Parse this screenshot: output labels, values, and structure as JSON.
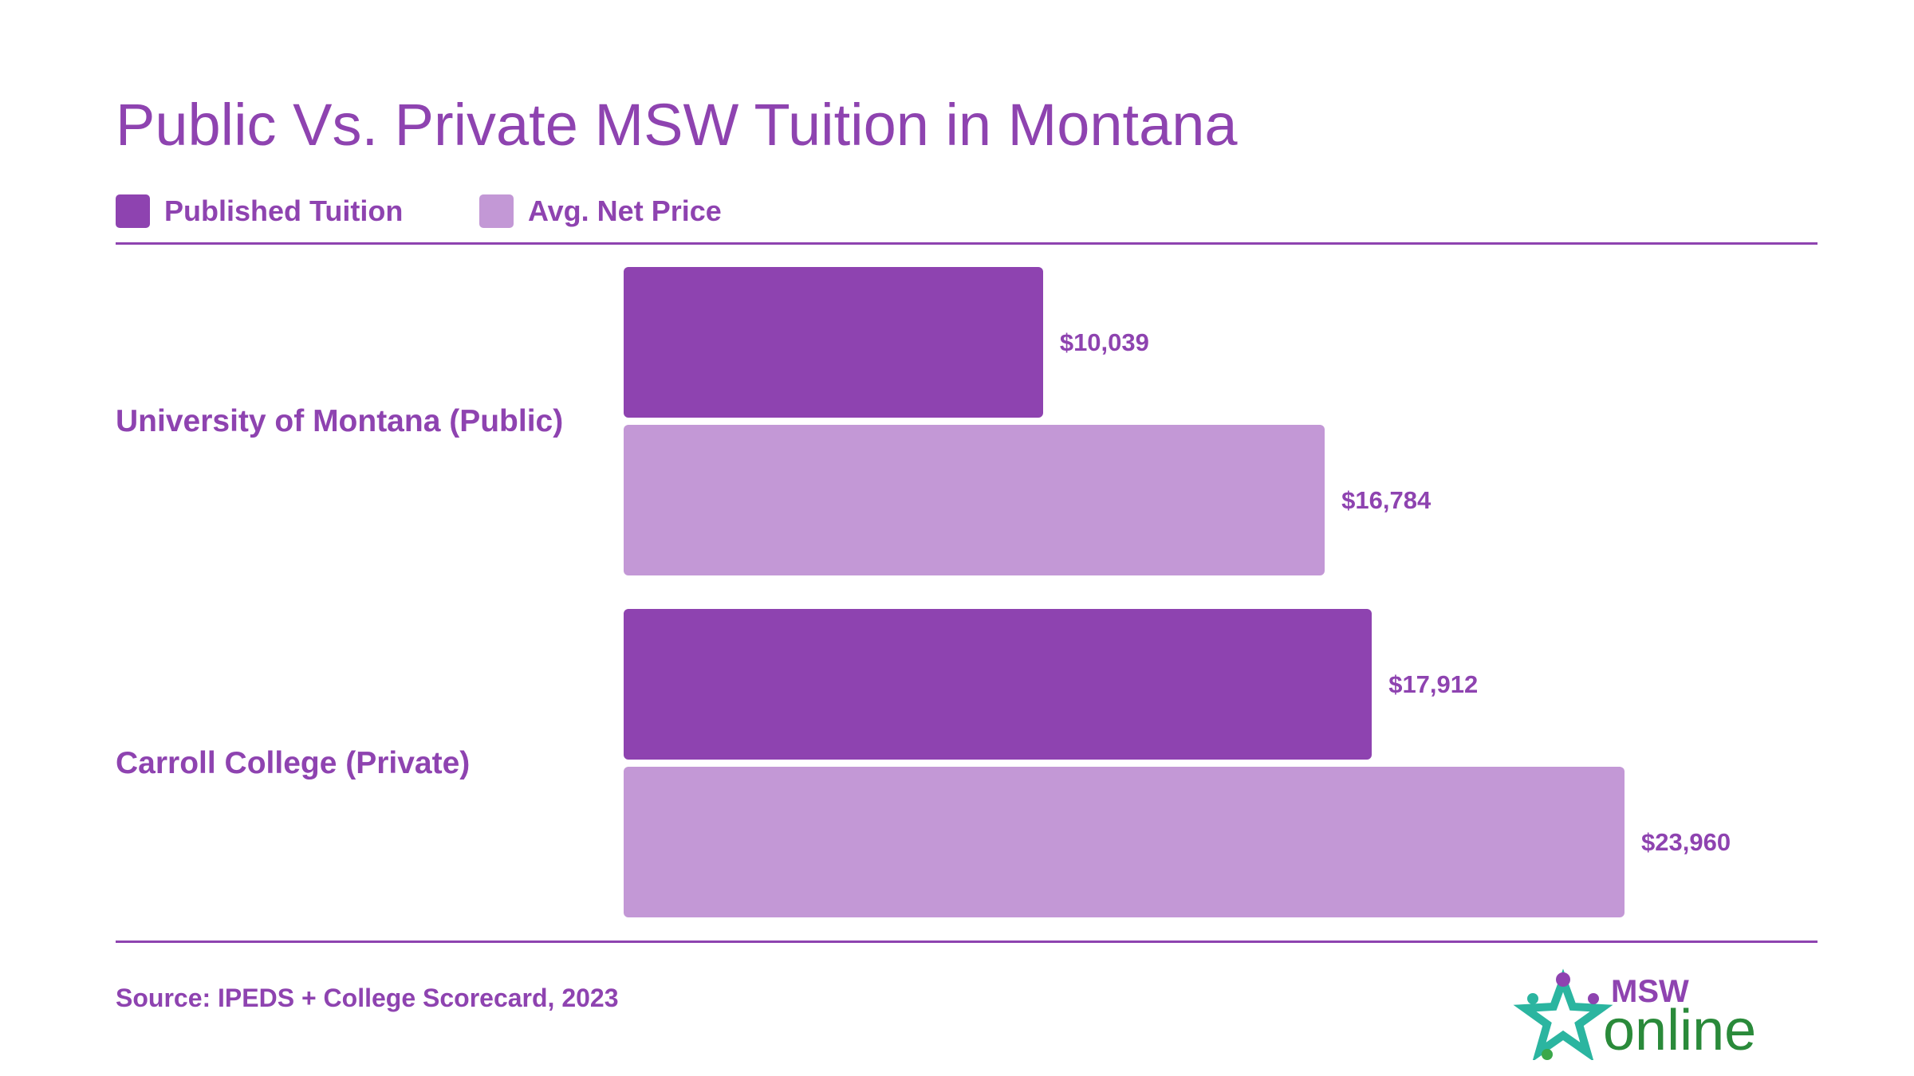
{
  "chart_data": {
    "type": "bar",
    "orientation": "horizontal",
    "title": "Public Vs. Private MSW Tuition in Montana",
    "categories": [
      "University of Montana (Public)",
      "Carroll College (Private)"
    ],
    "series": [
      {
        "name": "Published Tuition",
        "color": "#8e43b0",
        "values": [
          10039,
          17912
        ],
        "value_labels": [
          "$10,039",
          "$17,912"
        ]
      },
      {
        "name": "Avg. Net Price",
        "color": "#c398d6",
        "values": [
          16784,
          23960
        ],
        "value_labels": [
          "$16,784",
          "$23,960"
        ]
      }
    ],
    "source": "Source: IPEDS + College Scorecard, 2023"
  },
  "logo": {
    "top": "MSW",
    "bottom": "online"
  }
}
